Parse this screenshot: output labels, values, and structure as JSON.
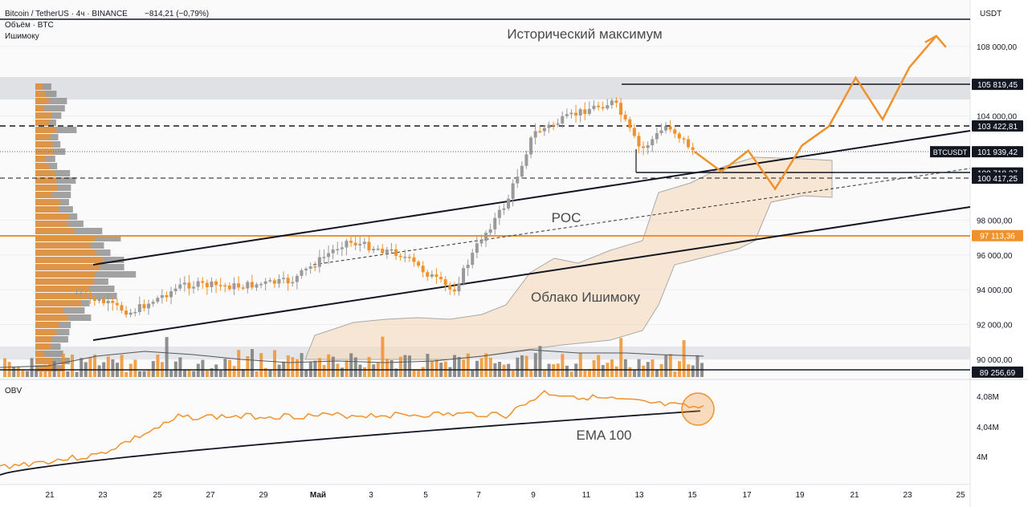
{
  "header": {
    "symbol_line": "Bitcoin / TetherUS · 4ч · BINANCE",
    "change": "−814,21 (−0,79%)",
    "volume_label": "Объём · BTC",
    "ichimoku_label": "Ишимоку"
  },
  "annotations": {
    "ath": "Исторический максимум",
    "poc": "POC",
    "cloud": "Облако Ишимоку",
    "ema": "EMA 100"
  },
  "price_axis": {
    "currency": "USDT",
    "ticks": [
      "108 000,00",
      "104 000,00",
      "98 000,00",
      "96 000,00",
      "94 000,00",
      "92 000,00",
      "90 000,00"
    ],
    "badges": [
      {
        "text": "105 819,45",
        "value": 105819.45,
        "style": "dark"
      },
      {
        "text": "103 422,81",
        "value": 103422.81,
        "style": "dark"
      },
      {
        "text": "101 939,42",
        "value": 101939.42,
        "style": "dark",
        "tag": "BTCUSDT"
      },
      {
        "text": "100 718,37",
        "value": 100718.37,
        "style": "dark"
      },
      {
        "text": "100 417,25",
        "value": 100417.25,
        "style": "dark"
      },
      {
        "text": "97 113,36",
        "value": 97113.36,
        "style": "orange"
      },
      {
        "text": "89 256,69",
        "value": 89256.69,
        "style": "dark"
      }
    ]
  },
  "obv_panel": {
    "label": "OBV",
    "ticks": [
      "4,08M",
      "4,04M",
      "4M"
    ]
  },
  "time_axis": [
    "21",
    "23",
    "25",
    "27",
    "29",
    "Май",
    "3",
    "5",
    "7",
    "9",
    "11",
    "13",
    "15",
    "17",
    "19",
    "21",
    "23",
    "25"
  ],
  "colors": {
    "orange": "#f0922b",
    "black": "#131722",
    "cloud": "#f5d9bb",
    "gray_band": "#d8dadd",
    "bull_candle": "#9a9a9a",
    "bear_candle": "#f0922b"
  },
  "chart_data": {
    "type": "candlestick",
    "title": "Bitcoin / TetherUS · 4ч · BINANCE",
    "y_range": [
      89000,
      109500
    ],
    "levels": {
      "all_time_high_zone": [
        105000,
        106500
      ],
      "resistance": 105819.45,
      "dashed_level": 103422.81,
      "last_price": 101939.42,
      "support": 100718.37,
      "support_dashed": 100417.25,
      "poc": 97113.36,
      "bottom_zone": 89256.69
    },
    "price_path": [
      {
        "date": "22 Apr",
        "close": 93800
      },
      {
        "date": "24 Apr",
        "close": 92700
      },
      {
        "date": "26 Apr",
        "close": 94300
      },
      {
        "date": "28 Apr",
        "close": 94200
      },
      {
        "date": "30 Apr",
        "close": 94500
      },
      {
        "date": "2 May",
        "close": 96800
      },
      {
        "date": "4 May",
        "close": 96100
      },
      {
        "date": "6 May",
        "close": 93900
      },
      {
        "date": "7 May",
        "close": 96800
      },
      {
        "date": "8 May",
        "close": 99000
      },
      {
        "date": "9 May",
        "close": 103000
      },
      {
        "date": "11 May",
        "close": 104400
      },
      {
        "date": "12 May",
        "close": 104800
      },
      {
        "date": "13 May",
        "close": 102000
      },
      {
        "date": "14 May",
        "close": 103500
      },
      {
        "date": "15 May",
        "close": 101939
      }
    ],
    "forecast_path": [
      {
        "date": "15 May",
        "value": 101939
      },
      {
        "date": "16 May",
        "value": 100800
      },
      {
        "date": "17 May",
        "value": 102000
      },
      {
        "date": "18 May",
        "value": 99800
      },
      {
        "date": "19 May",
        "value": 102300
      },
      {
        "date": "20 May",
        "value": 103400
      },
      {
        "date": "21 May",
        "value": 106200
      },
      {
        "date": "22 May",
        "value": 103800
      },
      {
        "date": "23 May",
        "value": 106800
      },
      {
        "date": "24 May",
        "value": 108600
      }
    ],
    "obv": {
      "label": "OBV",
      "ema_label": "EMA 100"
    }
  }
}
